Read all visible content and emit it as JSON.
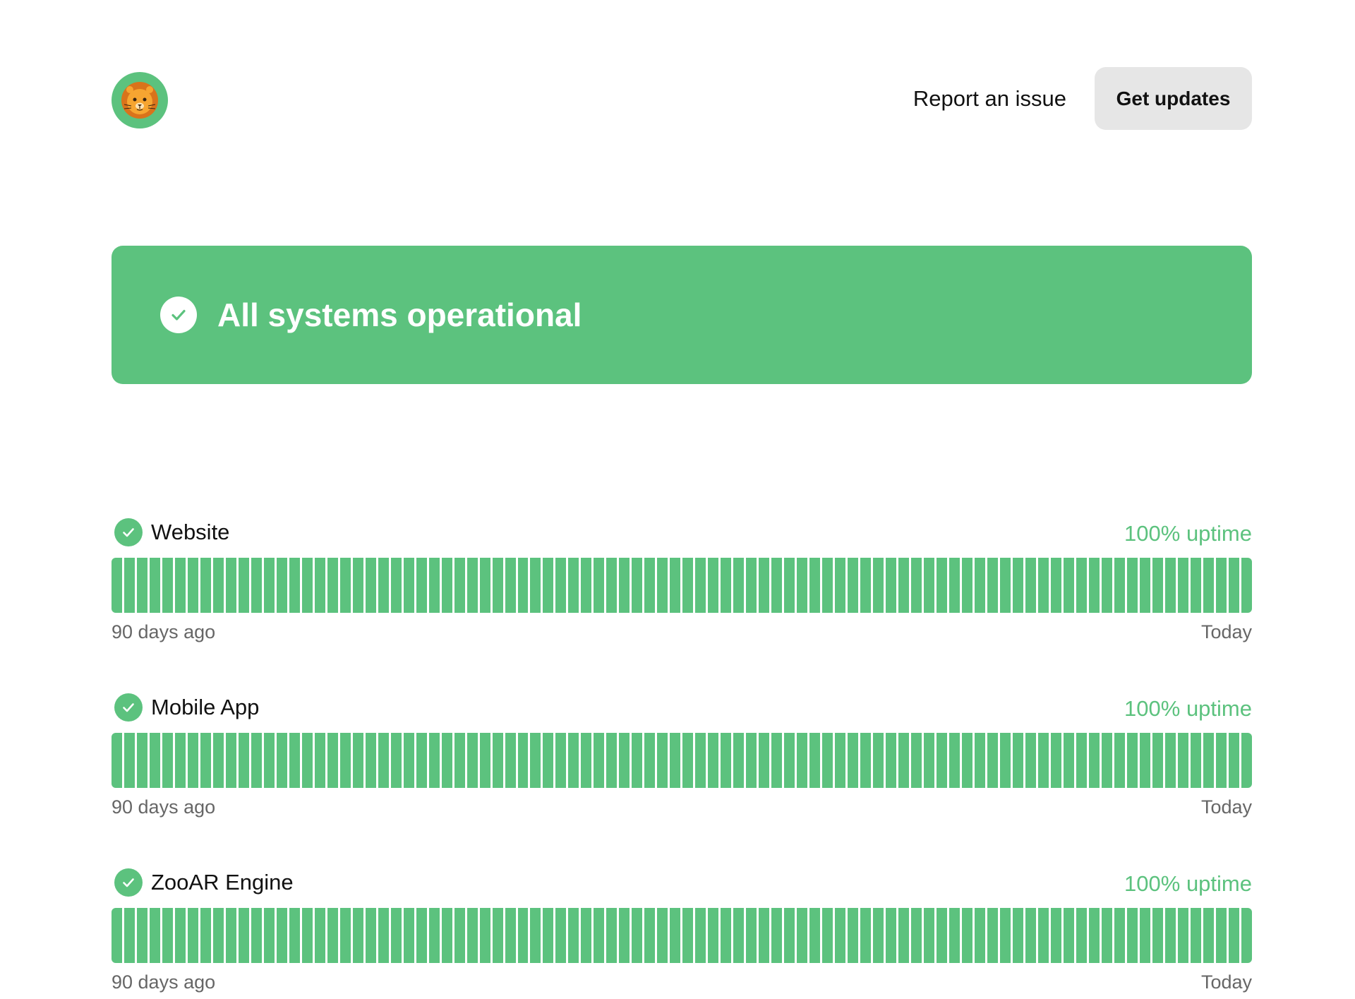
{
  "header": {
    "report_label": "Report an issue",
    "updates_label": "Get updates"
  },
  "banner": {
    "status_text": "All systems operational",
    "color": "#5cc27e"
  },
  "components": [
    {
      "name": "Website",
      "uptime_label": "100% uptime",
      "uptime_percent": 100,
      "range_start_label": "90 days ago",
      "range_end_label": "Today",
      "days": 90
    },
    {
      "name": "Mobile App",
      "uptime_label": "100% uptime",
      "uptime_percent": 100,
      "range_start_label": "90 days ago",
      "range_end_label": "Today",
      "days": 90
    },
    {
      "name": "ZooAR Engine",
      "uptime_label": "100% uptime",
      "uptime_percent": 100,
      "range_start_label": "90 days ago",
      "range_end_label": "Today",
      "days": 90
    }
  ],
  "icons": {
    "logo": "lion-logo-icon",
    "banner_status": "check-circle-icon",
    "component_status": "check-circle-icon"
  },
  "colors": {
    "operational": "#5cc27e",
    "muted_text": "#666666",
    "button_bg": "#e6e6e6"
  }
}
